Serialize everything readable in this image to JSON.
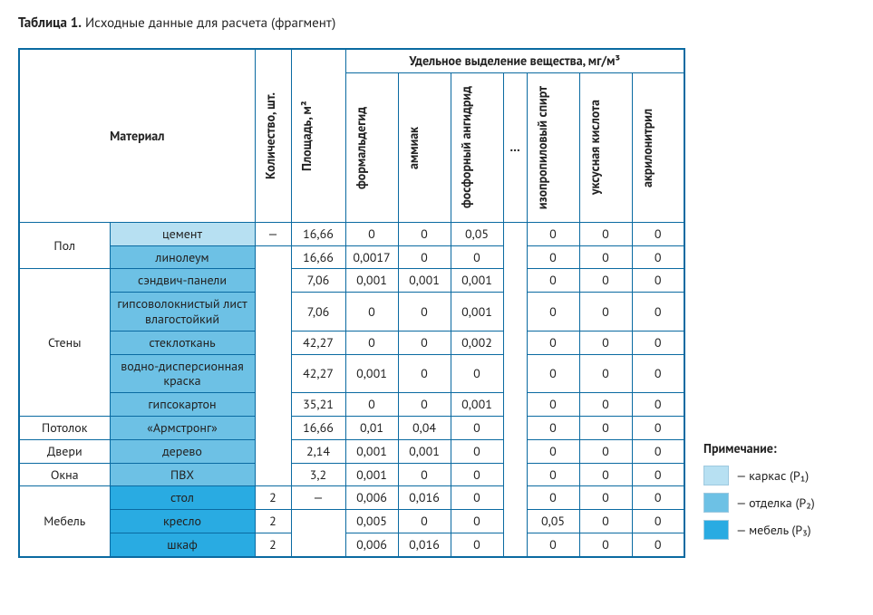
{
  "title_strong": "Таблица 1.",
  "title_rest": " Исходные данные для расчета (фрагмент)",
  "colors": {
    "border": "#0a6aa1",
    "shade_light": "#b7e0f2",
    "shade_mid": "#6dc1e5",
    "shade_dark": "#29abe2"
  },
  "colwidths": {
    "group": 100,
    "material": 160,
    "qty": 40,
    "area": 60,
    "sub": 58,
    "dots": 26
  },
  "head": {
    "material": "Материал",
    "qty": "Количество, шт.",
    "area": "Площадь, м²",
    "emission": "Удельное выделение вещества, мг/м³",
    "sub1": "формальдегид",
    "sub2": "аммиак",
    "sub3": "фосфорный ангидрид",
    "dots": "…",
    "sub4": "изопропиловый спирт",
    "sub5": "уксусная кислота",
    "sub6": "акрилонитрил"
  },
  "groups": [
    {
      "name": "Пол",
      "rowspan": 2
    },
    {
      "name": "Стены",
      "rowspan": 5
    },
    {
      "name": "Потолок",
      "rowspan": 1
    },
    {
      "name": "Двери",
      "rowspan": 1
    },
    {
      "name": "Окна",
      "rowspan": 1
    },
    {
      "name": "Мебель",
      "rowspan": 3
    }
  ],
  "rows": [
    {
      "g": 0,
      "mat": "цемент",
      "shade": "light",
      "qty": "—",
      "qty_rowspan": 1,
      "area": "16,66",
      "area_rowspan": 1,
      "v": [
        "0",
        "0",
        "0,05",
        "0",
        "0",
        "0"
      ]
    },
    {
      "g": 0,
      "mat": "линолеум",
      "shade": "mid",
      "qty": "",
      "qty_rowspan": 9,
      "area": "16,66",
      "area_rowspan": 1,
      "v": [
        "0,0017",
        "0",
        "0",
        "0",
        "0",
        "0"
      ]
    },
    {
      "g": 1,
      "mat": "сэндвич-панели",
      "shade": "mid",
      "area": "7,06",
      "area_rowspan": 1,
      "v": [
        "0,001",
        "0,001",
        "0,001",
        "0",
        "0",
        "0"
      ]
    },
    {
      "g": 1,
      "mat": "гипсоволокнистый лист влагостойкий",
      "shade": "mid",
      "area": "7,06",
      "area_rowspan": 1,
      "v": [
        "0",
        "0",
        "0,001",
        "0",
        "0",
        "0"
      ]
    },
    {
      "g": 1,
      "mat": "стеклоткань",
      "shade": "mid",
      "area": "42,27",
      "area_rowspan": 1,
      "v": [
        "0",
        "0",
        "0,002",
        "0",
        "0",
        "0"
      ]
    },
    {
      "g": 1,
      "mat": "водно-дисперсионная краска",
      "shade": "mid",
      "area": "42,27",
      "area_rowspan": 1,
      "v": [
        "0,001",
        "0",
        "0",
        "0",
        "0",
        "0"
      ]
    },
    {
      "g": 1,
      "mat": "гипсокартон",
      "shade": "mid",
      "area": "35,21",
      "area_rowspan": 1,
      "v": [
        "0",
        "0",
        "0,001",
        "0",
        "0",
        "0"
      ]
    },
    {
      "g": 2,
      "mat": "«Армстронг»",
      "shade": "mid",
      "area": "16,66",
      "area_rowspan": 1,
      "v": [
        "0,01",
        "0,04",
        "0",
        "0",
        "0",
        "0"
      ]
    },
    {
      "g": 3,
      "mat": "дерево",
      "shade": "mid",
      "area": "2,14",
      "area_rowspan": 1,
      "v": [
        "0,001",
        "0,001",
        "0",
        "0",
        "0",
        "0"
      ]
    },
    {
      "g": 4,
      "mat": "ПВХ",
      "shade": "mid",
      "area": "3,2",
      "area_rowspan": 1,
      "v": [
        "0,001",
        "0",
        "0",
        "0",
        "0",
        "0"
      ]
    },
    {
      "g": 5,
      "mat": "стол",
      "shade": "dark",
      "qty": "2",
      "qty_rowspan": 1,
      "area": "—",
      "area_rowspan": 1,
      "v": [
        "0,006",
        "0,016",
        "0",
        "0",
        "0",
        "0"
      ]
    },
    {
      "g": 5,
      "mat": "кресло",
      "shade": "dark",
      "qty": "2",
      "qty_rowspan": 1,
      "area": "",
      "area_rowspan": 2,
      "v": [
        "0,005",
        "0",
        "0",
        "0,05",
        "0",
        "0"
      ]
    },
    {
      "g": 5,
      "mat": "шкаф",
      "shade": "dark",
      "qty": "2",
      "qty_rowspan": 1,
      "v": [
        "0,006",
        "0,016",
        "0",
        "0",
        "0",
        "0"
      ]
    }
  ],
  "legend": {
    "title": "Примечание:",
    "items": [
      {
        "swatch": "light",
        "label": "— каркас (Р₁)"
      },
      {
        "swatch": "mid",
        "label": "— отделка (Р₂)"
      },
      {
        "swatch": "dark",
        "label": "— мебель (Р₃)"
      }
    ]
  }
}
